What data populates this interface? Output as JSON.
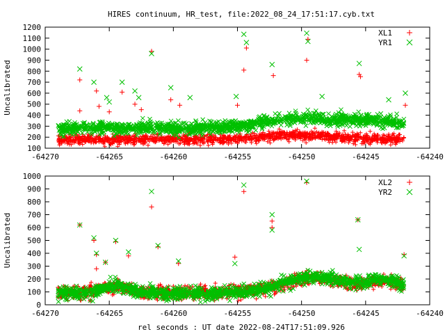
{
  "title": "HIRES continuum, HR_test, file:2022_08_24_17:51:17.cyb.txt",
  "xlabel": "rel seconds : UT date 2022-08-24T17:51:09.926",
  "colors": {
    "red": "#ff0000",
    "green": "#00c000"
  },
  "chart_data": [
    {
      "type": "scatter",
      "ylabel": "Uncalibrated",
      "xlim": [
        -64270,
        -64240
      ],
      "ylim": [
        100,
        1200
      ],
      "xticks": [
        -64270,
        -64265,
        -64260,
        -64255,
        -64250,
        -64245,
        -64240
      ],
      "xtick_labels": [
        "-64270",
        "-64265",
        "-64260",
        "-64255",
        "-64250",
        "-64245",
        "-64240"
      ],
      "yticks": [
        100,
        200,
        300,
        400,
        500,
        600,
        700,
        800,
        900,
        1000,
        1100,
        1200
      ],
      "ytick_labels": [
        "100",
        "200",
        "300",
        "400",
        "500",
        "600",
        "700",
        "800",
        "900",
        "1000",
        "1100",
        "1200"
      ],
      "legend_position": "top-right",
      "series": [
        {
          "name": "XL1",
          "marker": "plus",
          "color": "#ff0000",
          "x_range": [
            -64269,
            -64242
          ],
          "baseline": 180,
          "spread": 22,
          "count": 1400,
          "bumps": [
            [
              -64250,
              40,
              4
            ]
          ],
          "outliers": [
            [
              -64267.3,
              720
            ],
            [
              -64267.3,
              440
            ],
            [
              -64266,
              620
            ],
            [
              -64265.8,
              480
            ],
            [
              -64265,
              430
            ],
            [
              -64264,
              610
            ],
            [
              -64263,
              500
            ],
            [
              -64262.5,
              450
            ],
            [
              -64261.7,
              980
            ],
            [
              -64260.2,
              540
            ],
            [
              -64259.5,
              490
            ],
            [
              -64255,
              490
            ],
            [
              -64254.5,
              810
            ],
            [
              -64254.3,
              1010
            ],
            [
              -64252.2,
              760
            ],
            [
              -64249.6,
              900
            ],
            [
              -64249.5,
              1090
            ],
            [
              -64245.5,
              770
            ],
            [
              -64245.4,
              750
            ],
            [
              -64241.9,
              490
            ]
          ]
        },
        {
          "name": "YR1",
          "marker": "x",
          "color": "#00c000",
          "x_range": [
            -64269,
            -64242
          ],
          "baseline": 285,
          "spread": 28,
          "count": 1400,
          "bumps": [
            [
              -64250,
              90,
              4
            ],
            [
              -64244,
              60,
              3
            ]
          ],
          "outliers": [
            [
              -64267.3,
              820
            ],
            [
              -64266.2,
              700
            ],
            [
              -64265.2,
              560
            ],
            [
              -64265,
              520
            ],
            [
              -64264,
              700
            ],
            [
              -64263,
              620
            ],
            [
              -64262.7,
              560
            ],
            [
              -64261.7,
              960
            ],
            [
              -64260.2,
              650
            ],
            [
              -64258.7,
              560
            ],
            [
              -64255.1,
              570
            ],
            [
              -64254.5,
              1135
            ],
            [
              -64254.3,
              1060
            ],
            [
              -64252.3,
              860
            ],
            [
              -64249.6,
              1145
            ],
            [
              -64249.5,
              1070
            ],
            [
              -64248.4,
              570
            ],
            [
              -64245.5,
              870
            ],
            [
              -64243.2,
              540
            ],
            [
              -64241.9,
              600
            ]
          ]
        }
      ]
    },
    {
      "type": "scatter",
      "ylabel": "Uncalibrated",
      "xlim": [
        -64270,
        -64240
      ],
      "ylim": [
        0,
        1000
      ],
      "xticks": [
        -64270,
        -64265,
        -64260,
        -64255,
        -64250,
        -64245,
        -64240
      ],
      "xtick_labels": [
        "-64270",
        "-64265",
        "-64260",
        "-64255",
        "-64250",
        "-64245",
        "-64240"
      ],
      "yticks": [
        0,
        100,
        200,
        300,
        400,
        500,
        600,
        700,
        800,
        900,
        1000
      ],
      "ytick_labels": [
        "0",
        "100",
        "200",
        "300",
        "400",
        "500",
        "600",
        "700",
        "800",
        "900",
        "1000"
      ],
      "legend_position": "top-right",
      "series": [
        {
          "name": "XL2",
          "marker": "plus",
          "color": "#ff0000",
          "x_range": [
            -64269,
            -64242
          ],
          "baseline": 95,
          "spread": 25,
          "count": 1400,
          "bumps": [
            [
              -64249,
              110,
              3.5
            ],
            [
              -64243.5,
              80,
              2
            ],
            [
              -64264.5,
              45,
              1.5
            ]
          ],
          "outliers": [
            [
              -64267.3,
              620
            ],
            [
              -64266.2,
              500
            ],
            [
              -64266,
              390
            ],
            [
              -64266,
              280
            ],
            [
              -64265.3,
              330
            ],
            [
              -64264.5,
              490
            ],
            [
              -64263.5,
              380
            ],
            [
              -64261.7,
              760
            ],
            [
              -64261.2,
              450
            ],
            [
              -64259.6,
              320
            ],
            [
              -64255.2,
              370
            ],
            [
              -64254.5,
              880
            ],
            [
              -64252.3,
              650
            ],
            [
              -64252.3,
              600
            ],
            [
              -64249.6,
              950
            ],
            [
              -64245.6,
              660
            ],
            [
              -64242,
              390
            ]
          ]
        },
        {
          "name": "YR2",
          "marker": "x",
          "color": "#00c000",
          "x_range": [
            -64269,
            -64242
          ],
          "baseline": 90,
          "spread": 25,
          "count": 1400,
          "bumps": [
            [
              -64249,
              130,
              3.5
            ],
            [
              -64243.5,
              100,
              2
            ],
            [
              -64264.5,
              55,
              1.5
            ]
          ],
          "outliers": [
            [
              -64267.3,
              620
            ],
            [
              -64266.2,
              520
            ],
            [
              -64266,
              400
            ],
            [
              -64265.3,
              330
            ],
            [
              -64264.5,
              500
            ],
            [
              -64263.5,
              410
            ],
            [
              -64261.7,
              880
            ],
            [
              -64261.2,
              460
            ],
            [
              -64259.6,
              340
            ],
            [
              -64255.2,
              320
            ],
            [
              -64254.5,
              930
            ],
            [
              -64252.3,
              700
            ],
            [
              -64252.3,
              580
            ],
            [
              -64249.6,
              960
            ],
            [
              -64245.6,
              660
            ],
            [
              -64245.5,
              430
            ],
            [
              -64242,
              380
            ]
          ]
        }
      ]
    }
  ]
}
